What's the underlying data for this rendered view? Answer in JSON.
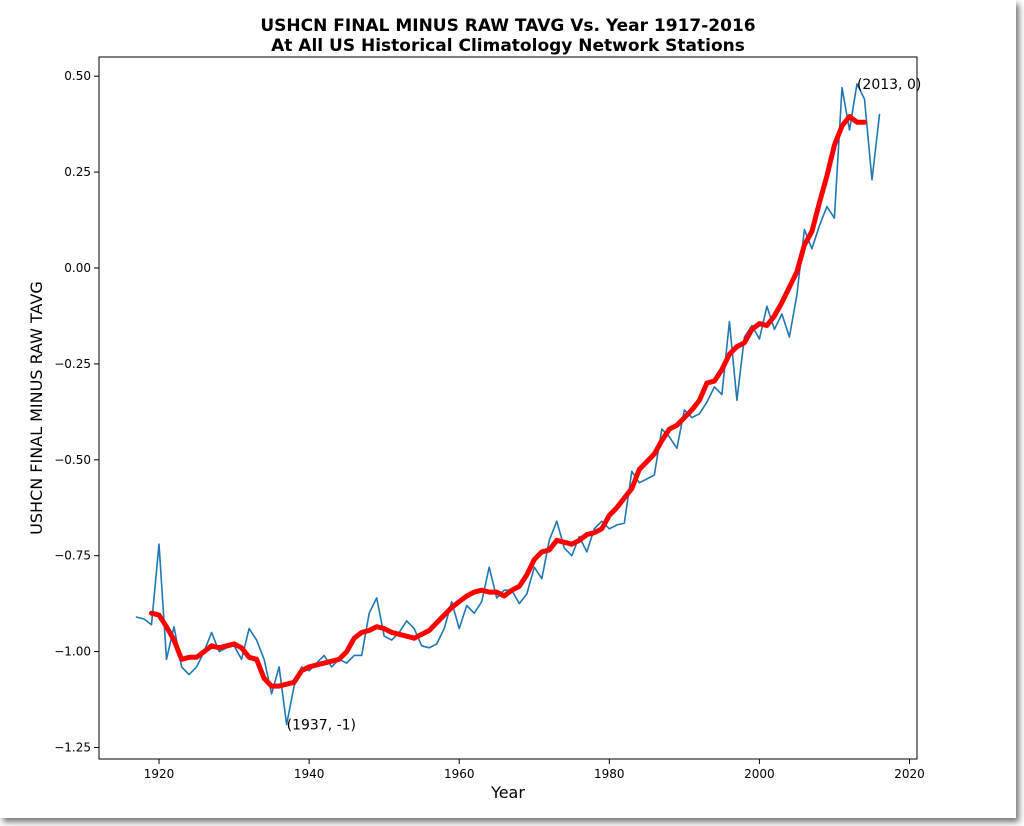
{
  "chart_data": {
    "type": "line",
    "title": "USHCN FINAL MINUS RAW TAVG Vs. Year 1917-2016",
    "subtitle": "At All US Historical Climatology Network Stations",
    "xlabel": "Year",
    "ylabel": "USHCN FINAL MINUS RAW TAVG",
    "xlim": [
      1912,
      2021
    ],
    "ylim": [
      -1.28,
      0.55
    ],
    "xticks": [
      "1920",
      "1940",
      "1960",
      "1980",
      "2000",
      "2020"
    ],
    "xtick_values": [
      1920,
      1940,
      1960,
      1980,
      2000,
      2020
    ],
    "yticks": [
      "0.50",
      "0.25",
      "0.00",
      "−0.25",
      "−0.50",
      "−0.75",
      "−1.00",
      "−1.25"
    ],
    "ytick_values": [
      0.5,
      0.25,
      0.0,
      -0.25,
      -0.5,
      -0.75,
      -1.0,
      -1.25
    ],
    "grid": false,
    "series": [
      {
        "color": "#1f77b4",
        "x": [
          1917,
          1918,
          1919,
          1920,
          1921,
          1922,
          1923,
          1924,
          1925,
          1926,
          1927,
          1928,
          1929,
          1930,
          1931,
          1932,
          1933,
          1934,
          1935,
          1936,
          1937,
          1938,
          1939,
          1940,
          1941,
          1942,
          1943,
          1944,
          1945,
          1946,
          1947,
          1948,
          1949,
          1950,
          1951,
          1952,
          1953,
          1954,
          1955,
          1956,
          1957,
          1958,
          1959,
          1960,
          1961,
          1962,
          1963,
          1964,
          1965,
          1966,
          1967,
          1968,
          1969,
          1970,
          1971,
          1972,
          1973,
          1974,
          1975,
          1976,
          1977,
          1978,
          1979,
          1980,
          1981,
          1982,
          1983,
          1984,
          1985,
          1986,
          1987,
          1988,
          1989,
          1990,
          1991,
          1992,
          1993,
          1994,
          1995,
          1996,
          1997,
          1998,
          1999,
          2000,
          2001,
          2002,
          2003,
          2004,
          2005,
          2006,
          2007,
          2008,
          2009,
          2010,
          2011,
          2012,
          2013,
          2014,
          2015,
          2016
        ],
        "y": [
          -0.91,
          -0.915,
          -0.93,
          -0.72,
          -1.02,
          -0.935,
          -1.04,
          -1.06,
          -1.04,
          -1.0,
          -0.95,
          -1.0,
          -0.99,
          -0.985,
          -1.02,
          -0.94,
          -0.97,
          -1.02,
          -1.11,
          -1.04,
          -1.19,
          -1.09,
          -1.04,
          -1.05,
          -1.03,
          -1.01,
          -1.04,
          -1.02,
          -1.03,
          -1.01,
          -1.01,
          -0.9,
          -0.86,
          -0.96,
          -0.97,
          -0.95,
          -0.92,
          -0.94,
          -0.985,
          -0.99,
          -0.98,
          -0.94,
          -0.87,
          -0.94,
          -0.88,
          -0.9,
          -0.87,
          -0.78,
          -0.86,
          -0.84,
          -0.84,
          -0.875,
          -0.85,
          -0.78,
          -0.81,
          -0.71,
          -0.66,
          -0.73,
          -0.75,
          -0.7,
          -0.74,
          -0.68,
          -0.66,
          -0.68,
          -0.67,
          -0.665,
          -0.53,
          -0.56,
          -0.55,
          -0.54,
          -0.42,
          -0.44,
          -0.47,
          -0.37,
          -0.39,
          -0.38,
          -0.35,
          -0.31,
          -0.33,
          -0.14,
          -0.345,
          -0.18,
          -0.15,
          -0.185,
          -0.1,
          -0.16,
          -0.12,
          -0.18,
          -0.07,
          0.1,
          0.05,
          0.11,
          0.16,
          0.13,
          0.47,
          0.36,
          0.48,
          0.44,
          0.23,
          0.4
        ]
      },
      {
        "color": "#ff0000",
        "x": [
          1919,
          1920,
          1921,
          1922,
          1923,
          1924,
          1925,
          1926,
          1927,
          1928,
          1929,
          1930,
          1931,
          1932,
          1933,
          1934,
          1935,
          1936,
          1937,
          1938,
          1939,
          1940,
          1941,
          1942,
          1943,
          1944,
          1945,
          1946,
          1947,
          1948,
          1949,
          1950,
          1951,
          1952,
          1953,
          1954,
          1955,
          1956,
          1957,
          1958,
          1959,
          1960,
          1961,
          1962,
          1963,
          1964,
          1965,
          1966,
          1967,
          1968,
          1969,
          1970,
          1971,
          1972,
          1973,
          1974,
          1975,
          1976,
          1977,
          1978,
          1979,
          1980,
          1981,
          1982,
          1983,
          1984,
          1985,
          1986,
          1987,
          1988,
          1989,
          1990,
          1991,
          1992,
          1993,
          1994,
          1995,
          1996,
          1997,
          1998,
          1999,
          2000,
          2001,
          2002,
          2003,
          2004,
          2005,
          2006,
          2007,
          2008,
          2009,
          2010,
          2011,
          2012,
          2013,
          2014
        ],
        "y": [
          -0.9,
          -0.905,
          -0.935,
          -0.97,
          -1.02,
          -1.015,
          -1.015,
          -1.0,
          -0.985,
          -0.99,
          -0.985,
          -0.98,
          -0.99,
          -1.015,
          -1.02,
          -1.07,
          -1.09,
          -1.09,
          -1.085,
          -1.08,
          -1.05,
          -1.04,
          -1.035,
          -1.03,
          -1.025,
          -1.02,
          -1.0,
          -0.965,
          -0.95,
          -0.945,
          -0.935,
          -0.94,
          -0.95,
          -0.955,
          -0.96,
          -0.965,
          -0.955,
          -0.945,
          -0.925,
          -0.905,
          -0.885,
          -0.87,
          -0.855,
          -0.845,
          -0.84,
          -0.845,
          -0.845,
          -0.855,
          -0.84,
          -0.83,
          -0.8,
          -0.76,
          -0.74,
          -0.735,
          -0.71,
          -0.715,
          -0.72,
          -0.71,
          -0.695,
          -0.69,
          -0.68,
          -0.645,
          -0.625,
          -0.6,
          -0.575,
          -0.525,
          -0.505,
          -0.485,
          -0.45,
          -0.42,
          -0.41,
          -0.39,
          -0.37,
          -0.345,
          -0.3,
          -0.295,
          -0.265,
          -0.225,
          -0.205,
          -0.195,
          -0.16,
          -0.145,
          -0.15,
          -0.125,
          -0.09,
          -0.05,
          -0.01,
          0.06,
          0.095,
          0.17,
          0.24,
          0.32,
          0.37,
          0.395,
          0.38,
          0.38
        ]
      }
    ],
    "annotations": [
      {
        "text": "(1937, -1)",
        "x": 1937,
        "y": -1.19
      },
      {
        "text": "(2013, 0)",
        "x": 2013,
        "y": 0.48
      }
    ]
  }
}
